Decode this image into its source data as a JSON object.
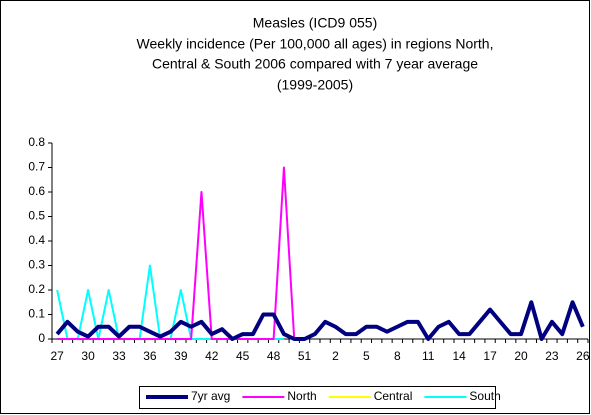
{
  "chart_data": {
    "type": "line",
    "title": "Measles (ICD9 055)",
    "subtitle": [
      "Weekly incidence (Per 100,000 all ages) in regions North,",
      "Central & South 2006 compared with 7 year average",
      "(1999-2005)"
    ],
    "categories": [
      "27",
      null,
      null,
      "30",
      null,
      null,
      "33",
      null,
      null,
      "36",
      null,
      null,
      "39",
      null,
      null,
      "42",
      null,
      null,
      "45",
      null,
      null,
      "48",
      null,
      null,
      "51",
      null,
      null,
      "2",
      null,
      null,
      "5",
      null,
      null,
      "8",
      null,
      null,
      "11",
      null,
      null,
      "14",
      null,
      null,
      "17",
      null,
      null,
      "20",
      null,
      null,
      "23",
      null,
      null,
      "26"
    ],
    "ylim": [
      0,
      0.8
    ],
    "yticks": [
      0,
      0.1,
      0.2,
      0.3,
      0.4,
      0.5,
      0.6,
      0.7,
      0.8
    ],
    "grid": false,
    "legend": "bottom",
    "series": [
      {
        "name": "7yr avg",
        "color": "#000080",
        "values": [
          0.02,
          0.07,
          0.03,
          0.01,
          0.05,
          0.05,
          0.01,
          0.05,
          0.05,
          0.03,
          0.01,
          0.03,
          0.07,
          0.05,
          0.07,
          0.02,
          0.04,
          0.0,
          0.02,
          0.02,
          0.1,
          0.1,
          0.02,
          0.0,
          0.0,
          0.02,
          0.07,
          0.05,
          0.02,
          0.02,
          0.05,
          0.05,
          0.03,
          0.05,
          0.07,
          0.07,
          0.0,
          0.05,
          0.07,
          0.02,
          0.02,
          0.07,
          0.12,
          0.07,
          0.02,
          0.02,
          0.15,
          0.0,
          0.07,
          0.02,
          0.15,
          0.05
        ]
      },
      {
        "name": "North",
        "color": "#ff00ff",
        "values": [
          0,
          0,
          0,
          0,
          0,
          0,
          0,
          0,
          0,
          0,
          0,
          0,
          0,
          0,
          0.6,
          0,
          0,
          0,
          0,
          0,
          0,
          0,
          0.7,
          0,
          null,
          null,
          null,
          null,
          null,
          null,
          null,
          null,
          null,
          null,
          null,
          null,
          null,
          null,
          null,
          null,
          null,
          null,
          null,
          null,
          null,
          null,
          null,
          null,
          null,
          null,
          null,
          null
        ]
      },
      {
        "name": "Central",
        "color": "#ffff00",
        "values": [
          0,
          0,
          0,
          0,
          0,
          0,
          0,
          0,
          0,
          0,
          0,
          0,
          0,
          0,
          null,
          null,
          null,
          null,
          null,
          null,
          null,
          null,
          null,
          null,
          null,
          null,
          null,
          null,
          null,
          null,
          null,
          null,
          null,
          null,
          null,
          null,
          null,
          null,
          null,
          null,
          null,
          null,
          null,
          null,
          null,
          null,
          null,
          null,
          null,
          null,
          null,
          null
        ]
      },
      {
        "name": "South",
        "color": "#00ffff",
        "values": [
          0.2,
          0,
          0,
          0.2,
          0,
          0.2,
          0,
          0,
          0,
          0.3,
          0,
          0,
          0.2,
          0,
          0,
          0,
          0,
          0,
          0,
          0,
          0,
          0,
          0,
          null,
          null,
          null,
          null,
          null,
          null,
          null,
          null,
          null,
          null,
          null,
          null,
          null,
          null,
          null,
          null,
          null,
          null,
          null,
          null,
          null,
          null,
          null,
          null,
          null,
          null,
          null,
          null,
          null
        ]
      }
    ]
  }
}
